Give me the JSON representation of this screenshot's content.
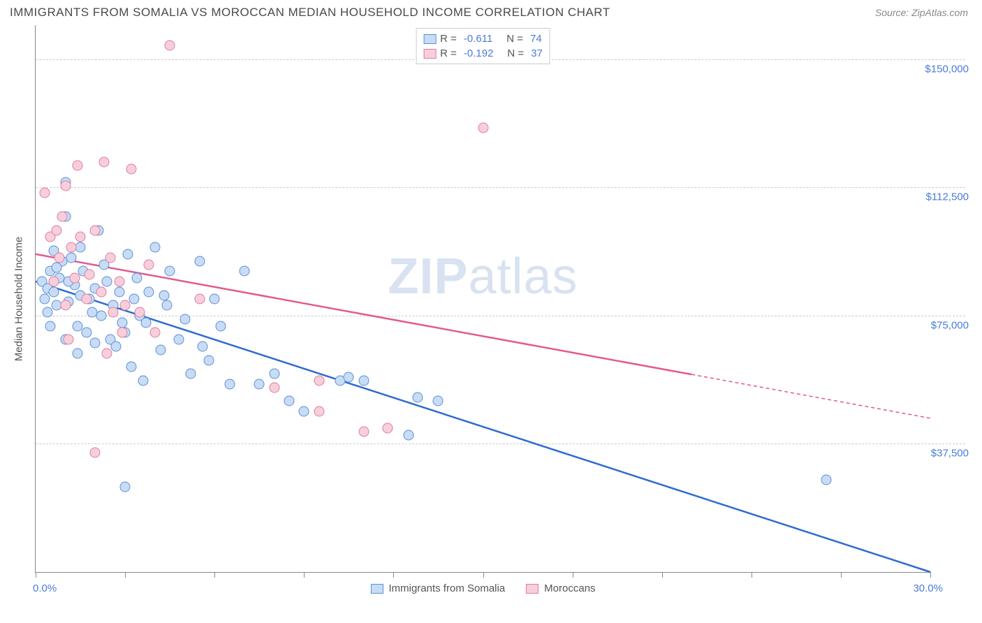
{
  "title": "IMMIGRANTS FROM SOMALIA VS MOROCCAN MEDIAN HOUSEHOLD INCOME CORRELATION CHART",
  "source": "Source: ZipAtlas.com",
  "watermark_bold": "ZIP",
  "watermark_rest": "atlas",
  "chart": {
    "type": "scatter",
    "xlim": [
      0,
      30
    ],
    "ylim": [
      0,
      160000
    ],
    "x_min_label": "0.0%",
    "x_max_label": "30.0%",
    "y_axis_title": "Median Household Income",
    "y_gridlines": [
      37500,
      75000,
      112500,
      150000
    ],
    "y_tick_labels": [
      "$37,500",
      "$75,000",
      "$112,500",
      "$150,000"
    ],
    "x_tick_positions": [
      0,
      3,
      6,
      9,
      12,
      15,
      18,
      21,
      24,
      27,
      30
    ],
    "background_color": "#ffffff",
    "grid_color": "#cccccc",
    "axis_color": "#888888",
    "series": [
      {
        "name": "Immigrants from Somalia",
        "fill": "#c8dcf5",
        "stroke": "#5b8fd6",
        "line_color": "#2f6bd0",
        "r_value": "-0.611",
        "n_value": "74",
        "trend": {
          "x1": 0,
          "y1": 85000,
          "x2": 30,
          "y2": 0,
          "dash_from_x": 30
        },
        "points": [
          [
            0.2,
            85000
          ],
          [
            0.4,
            83000
          ],
          [
            0.3,
            80000
          ],
          [
            0.5,
            88000
          ],
          [
            0.6,
            82000
          ],
          [
            0.8,
            86000
          ],
          [
            0.7,
            78000
          ],
          [
            1.0,
            104000
          ],
          [
            1.2,
            92000
          ],
          [
            1.1,
            79000
          ],
          [
            1.3,
            84000
          ],
          [
            1.5,
            95000
          ],
          [
            1.4,
            72000
          ],
          [
            1.6,
            88000
          ],
          [
            1.8,
            80000
          ],
          [
            2.0,
            83000
          ],
          [
            2.1,
            100000
          ],
          [
            2.2,
            75000
          ],
          [
            2.4,
            85000
          ],
          [
            2.5,
            68000
          ],
          [
            2.6,
            78000
          ],
          [
            2.8,
            82000
          ],
          [
            3.0,
            70000
          ],
          [
            3.1,
            93000
          ],
          [
            3.2,
            60000
          ],
          [
            3.5,
            75000
          ],
          [
            3.6,
            56000
          ],
          [
            3.8,
            82000
          ],
          [
            4.0,
            95000
          ],
          [
            4.2,
            65000
          ],
          [
            4.4,
            78000
          ],
          [
            4.5,
            88000
          ],
          [
            5.0,
            74000
          ],
          [
            5.2,
            58000
          ],
          [
            5.5,
            91000
          ],
          [
            5.8,
            62000
          ],
          [
            6.0,
            80000
          ],
          [
            6.2,
            72000
          ],
          [
            6.5,
            55000
          ],
          [
            7.0,
            88000
          ],
          [
            7.5,
            55000
          ],
          [
            8.0,
            58000
          ],
          [
            8.5,
            50000
          ],
          [
            9.0,
            47000
          ],
          [
            10.2,
            56000
          ],
          [
            10.5,
            57000
          ],
          [
            11.0,
            56000
          ],
          [
            12.5,
            40000
          ],
          [
            12.8,
            51000
          ],
          [
            13.5,
            50000
          ],
          [
            26.5,
            27000
          ],
          [
            1.9,
            76000
          ],
          [
            2.3,
            90000
          ],
          [
            3.3,
            80000
          ],
          [
            0.9,
            91000
          ],
          [
            1.7,
            70000
          ],
          [
            2.7,
            66000
          ],
          [
            4.8,
            68000
          ],
          [
            3.4,
            86000
          ],
          [
            2.9,
            73000
          ],
          [
            0.6,
            94000
          ],
          [
            1.0,
            114000
          ],
          [
            3.0,
            25000
          ],
          [
            0.4,
            76000
          ],
          [
            0.5,
            72000
          ],
          [
            1.0,
            68000
          ],
          [
            1.4,
            64000
          ],
          [
            0.7,
            89000
          ],
          [
            1.1,
            85000
          ],
          [
            1.5,
            81000
          ],
          [
            2.0,
            67000
          ],
          [
            3.7,
            73000
          ],
          [
            4.3,
            81000
          ],
          [
            5.6,
            66000
          ]
        ]
      },
      {
        "name": "Moroccans",
        "fill": "#f7cfdb",
        "stroke": "#e07ba0",
        "line_color": "#e35b8a",
        "r_value": "-0.192",
        "n_value": "37",
        "trend": {
          "x1": 0,
          "y1": 93000,
          "x2": 30,
          "y2": 45000,
          "dash_from_x": 22
        },
        "points": [
          [
            0.3,
            111000
          ],
          [
            0.5,
            98000
          ],
          [
            0.7,
            100000
          ],
          [
            0.8,
            92000
          ],
          [
            1.0,
            113000
          ],
          [
            1.2,
            95000
          ],
          [
            1.4,
            119000
          ],
          [
            1.5,
            98000
          ],
          [
            1.8,
            87000
          ],
          [
            2.0,
            100000
          ],
          [
            2.2,
            82000
          ],
          [
            2.3,
            120000
          ],
          [
            2.5,
            92000
          ],
          [
            2.8,
            85000
          ],
          [
            3.0,
            78000
          ],
          [
            3.2,
            118000
          ],
          [
            3.5,
            76000
          ],
          [
            3.8,
            90000
          ],
          [
            4.0,
            70000
          ],
          [
            1.0,
            78000
          ],
          [
            4.5,
            154000
          ],
          [
            5.5,
            80000
          ],
          [
            1.7,
            80000
          ],
          [
            2.6,
            76000
          ],
          [
            1.3,
            86000
          ],
          [
            0.9,
            104000
          ],
          [
            2.0,
            35000
          ],
          [
            8.0,
            54000
          ],
          [
            9.5,
            47000
          ],
          [
            11.0,
            41000
          ],
          [
            11.8,
            42000
          ],
          [
            15.0,
            130000
          ],
          [
            1.1,
            68000
          ],
          [
            0.6,
            85000
          ],
          [
            2.4,
            64000
          ],
          [
            2.9,
            70000
          ],
          [
            9.5,
            56000
          ]
        ]
      }
    ]
  }
}
